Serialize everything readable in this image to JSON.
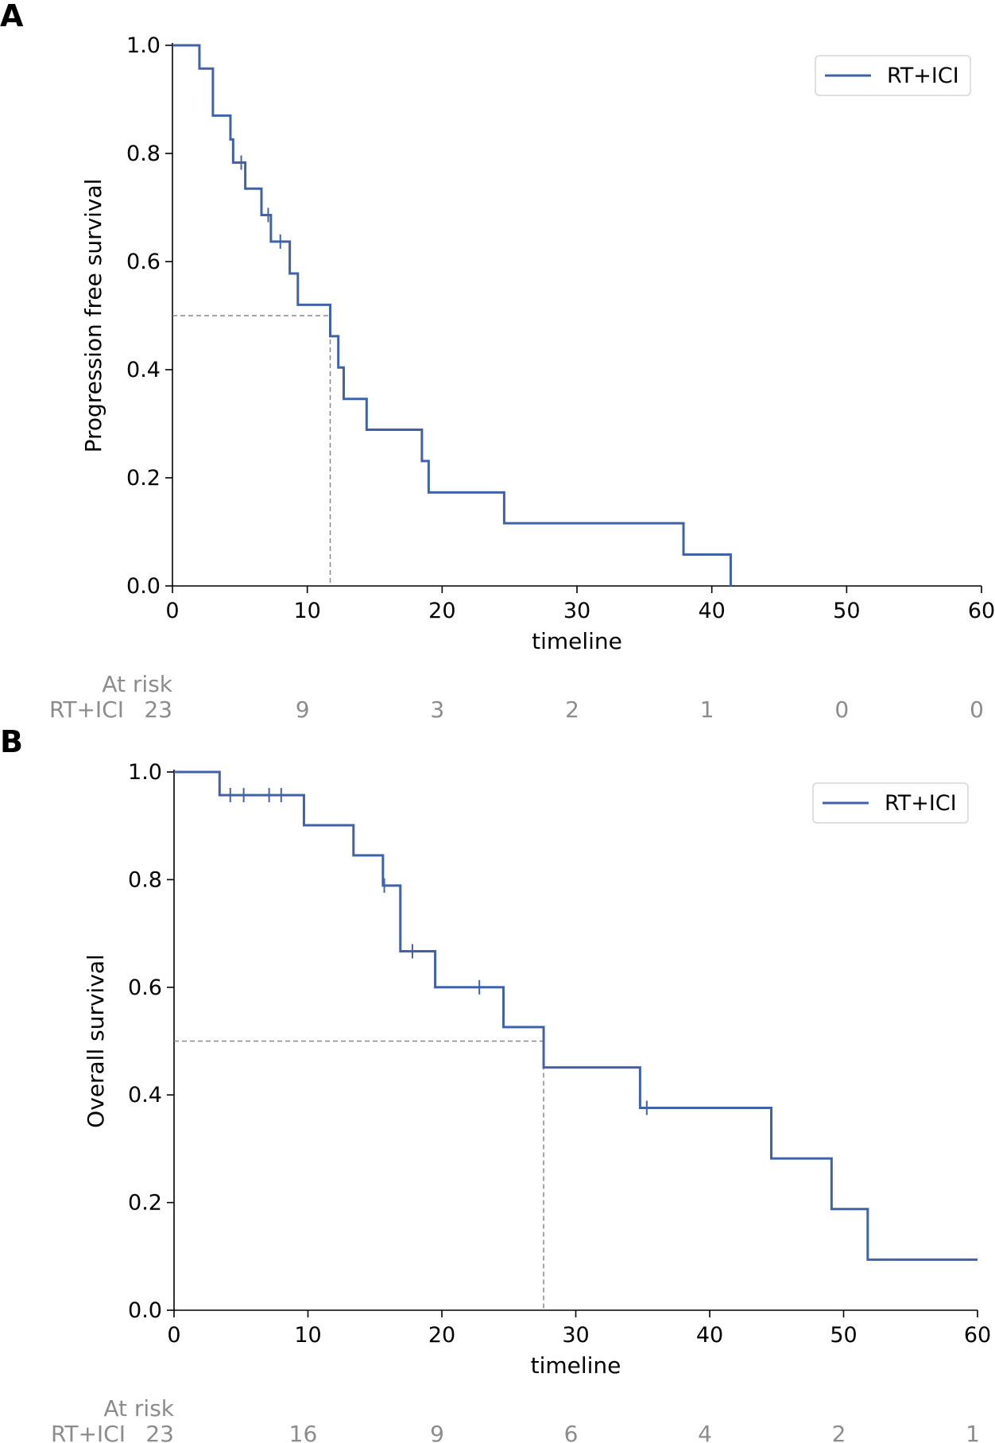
{
  "chart_data": [
    {
      "type": "line",
      "panel_label": "A",
      "title": "",
      "xlabel": "timeline",
      "ylabel": "Progression free survival",
      "xlim": [
        0,
        60
      ],
      "ylim": [
        0,
        1
      ],
      "x_ticks": [
        "0",
        "10",
        "20",
        "30",
        "40",
        "50",
        "60"
      ],
      "y_ticks": [
        "0.0",
        "0.2",
        "0.4",
        "0.6",
        "0.8",
        "1.0"
      ],
      "legend": "top-right",
      "grid": false,
      "series": [
        {
          "name": "RT+ICI",
          "color": "#4062a8",
          "steps": [
            [
              0,
              1.0
            ],
            [
              2.0,
              0.957
            ],
            [
              3.0,
              0.87
            ],
            [
              4.3,
              0.826
            ],
            [
              4.5,
              0.783
            ],
            [
              5.4,
              0.735
            ],
            [
              6.6,
              0.686
            ],
            [
              7.3,
              0.637
            ],
            [
              8.7,
              0.578
            ],
            [
              9.3,
              0.52
            ],
            [
              11.7,
              0.462
            ],
            [
              12.3,
              0.404
            ],
            [
              12.7,
              0.346
            ],
            [
              14.4,
              0.289
            ],
            [
              18.5,
              0.231
            ],
            [
              19.0,
              0.173
            ],
            [
              24.6,
              0.116
            ],
            [
              37.9,
              0.058
            ],
            [
              41.4,
              0.0
            ]
          ],
          "end_x": 41.4,
          "censored": [
            [
              5.1,
              0.783
            ],
            [
              7.1,
              0.686
            ],
            [
              8.0,
              0.637
            ]
          ]
        }
      ],
      "median": {
        "x": 11.7,
        "y": 0.5
      },
      "at_risk": {
        "title": "At risk",
        "row_label": "RT+ICI",
        "times": [
          0,
          10,
          20,
          30,
          40,
          50,
          60
        ],
        "labels": [
          "23",
          "9",
          "3",
          "2",
          "1",
          "0",
          "0"
        ]
      }
    },
    {
      "type": "line",
      "panel_label": "B",
      "title": "",
      "xlabel": "timeline",
      "ylabel": "Overall survival",
      "xlim": [
        0,
        60
      ],
      "ylim": [
        0,
        1
      ],
      "x_ticks": [
        "0",
        "10",
        "20",
        "30",
        "40",
        "50",
        "60"
      ],
      "y_ticks": [
        "0.0",
        "0.2",
        "0.4",
        "0.6",
        "0.8",
        "1.0"
      ],
      "legend": "top-right",
      "grid": false,
      "series": [
        {
          "name": "RT+ICI",
          "color": "#4062a8",
          "steps": [
            [
              0,
              1.0
            ],
            [
              3.4,
              0.957
            ],
            [
              9.7,
              0.901
            ],
            [
              13.4,
              0.845
            ],
            [
              15.6,
              0.789
            ],
            [
              16.9,
              0.667
            ],
            [
              19.5,
              0.6
            ],
            [
              24.6,
              0.526
            ],
            [
              27.6,
              0.451
            ],
            [
              34.8,
              0.376
            ],
            [
              44.6,
              0.282
            ],
            [
              49.1,
              0.188
            ],
            [
              51.8,
              0.094
            ]
          ],
          "end_x": 60,
          "censored": [
            [
              4.2,
              0.957
            ],
            [
              5.2,
              0.957
            ],
            [
              7.1,
              0.957
            ],
            [
              8.0,
              0.957
            ],
            [
              15.7,
              0.789
            ],
            [
              17.8,
              0.667
            ],
            [
              22.8,
              0.6
            ],
            [
              35.3,
              0.376
            ]
          ]
        }
      ],
      "median": {
        "x": 27.6,
        "y": 0.5
      },
      "at_risk": {
        "title": "At risk",
        "row_label": "RT+ICI",
        "times": [
          0,
          10,
          20,
          30,
          40,
          50,
          60
        ],
        "labels": [
          "23",
          "16",
          "9",
          "6",
          "4",
          "2",
          "1"
        ]
      }
    }
  ]
}
